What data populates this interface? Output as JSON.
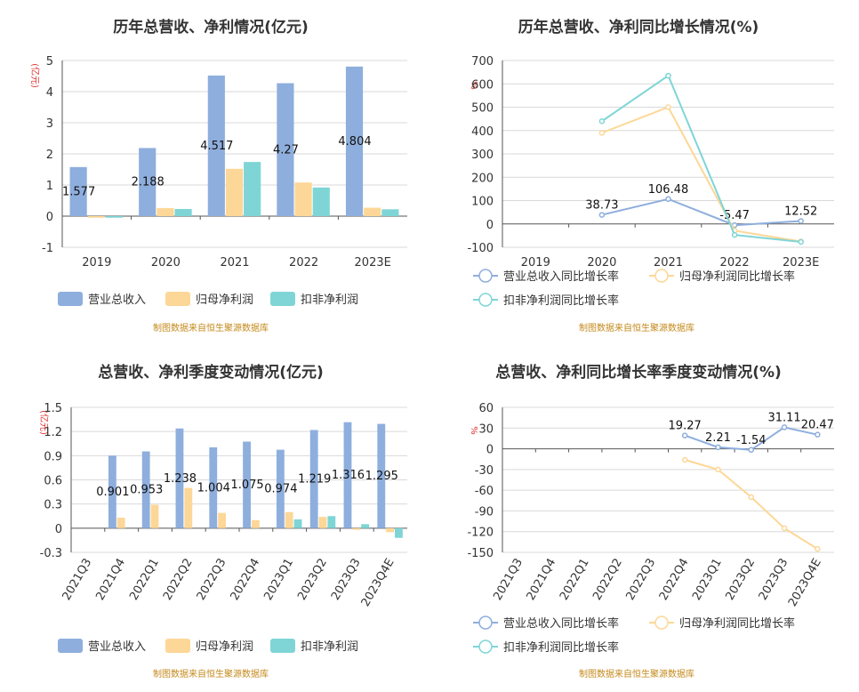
{
  "colors": {
    "revenue": "#8eaedd",
    "net_profit": "#fdd797",
    "deducted_profit": "#7fd5d6",
    "revenue_line": "#8eaedd",
    "net_line": "#fdd797",
    "deducted_line": "#7fd5d6"
  },
  "chart_data": [
    {
      "id": "annual-values",
      "type": "bar",
      "title": "历年总营收、净利情况(亿元)",
      "unit_label": "(亿元)",
      "categories": [
        "2019",
        "2020",
        "2021",
        "2022",
        "2023E"
      ],
      "ylim": [
        -1,
        5
      ],
      "yticks": [
        -1,
        0,
        1,
        2,
        3,
        4,
        5
      ],
      "grid": true,
      "legend_placement": "bottom",
      "series": [
        {
          "name": "营业总收入",
          "values": [
            1.577,
            2.188,
            4.517,
            4.27,
            4.804
          ],
          "labels": [
            "1.577",
            "2.188",
            "4.517",
            "4.27",
            "4.804"
          ]
        },
        {
          "name": "归母净利润",
          "values": [
            -0.05,
            0.26,
            1.52,
            1.08,
            0.27
          ]
        },
        {
          "name": "扣非净利润",
          "values": [
            -0.05,
            0.23,
            1.74,
            0.92,
            0.22
          ]
        }
      ],
      "source": "制图数据来自恒生聚源数据库"
    },
    {
      "id": "annual-growth",
      "type": "line",
      "title": "历年总营收、净利同比增长情况(%)",
      "unit_label": "%",
      "categories": [
        "2019",
        "2020",
        "2021",
        "2022",
        "2023E"
      ],
      "ylim": [
        -100,
        700
      ],
      "yticks": [
        -100,
        0,
        100,
        200,
        300,
        400,
        500,
        600,
        700
      ],
      "grid": true,
      "legend_placement": "bottom",
      "series": [
        {
          "name": "营业总收入同比增长率",
          "values": [
            null,
            38.73,
            106.48,
            -5.47,
            12.52
          ],
          "labels": [
            "",
            "38.73",
            "106.48",
            "-5.47",
            "12.52"
          ]
        },
        {
          "name": "归母净利润同比增长率",
          "values": [
            null,
            390,
            500,
            -29,
            -75
          ]
        },
        {
          "name": "扣非净利润同比增长率",
          "values": [
            null,
            440,
            635,
            -47,
            -77
          ]
        }
      ],
      "source": "制图数据来自恒生聚源数据库"
    },
    {
      "id": "quarterly-values",
      "type": "bar",
      "title": "总营收、净利季度变动情况(亿元)",
      "unit_label": "(亿元)",
      "categories": [
        "2021Q3",
        "2021Q4",
        "2022Q1",
        "2022Q2",
        "2022Q3",
        "2022Q4",
        "2023Q1",
        "2023Q2",
        "2023Q3",
        "2023Q4E"
      ],
      "ylim": [
        -0.3,
        1.5
      ],
      "yticks": [
        -0.3,
        0,
        0.3,
        0.6,
        0.9,
        1.2,
        1.5
      ],
      "grid": true,
      "legend_placement": "bottom",
      "series": [
        {
          "name": "营业总收入",
          "values": [
            null,
            0.901,
            0.953,
            1.238,
            1.004,
            1.075,
            0.974,
            1.219,
            1.316,
            1.295
          ],
          "labels": [
            "",
            "0.901",
            "0.953",
            "1.238",
            "1.004",
            "1.075",
            "0.974",
            "1.219",
            "1.316",
            "1.295"
          ]
        },
        {
          "name": "归母净利润",
          "values": [
            null,
            0.13,
            0.29,
            0.5,
            0.19,
            0.1,
            0.2,
            0.14,
            -0.02,
            -0.05
          ]
        },
        {
          "name": "扣非净利润",
          "values": [
            null,
            null,
            null,
            null,
            null,
            null,
            0.11,
            0.15,
            0.05,
            -0.12
          ]
        }
      ],
      "source": "制图数据来自恒生聚源数据库"
    },
    {
      "id": "quarterly-growth",
      "type": "line",
      "title": "总营收、净利同比增长率季度变动情况(%)",
      "unit_label": "%",
      "categories": [
        "2021Q3",
        "2021Q4",
        "2022Q1",
        "2022Q2",
        "2022Q3",
        "2022Q4",
        "2023Q1",
        "2023Q2",
        "2023Q3",
        "2023Q4E"
      ],
      "ylim": [
        -150,
        60
      ],
      "yticks": [
        -150,
        -120,
        -90,
        -60,
        -30,
        0,
        30,
        60
      ],
      "grid": true,
      "legend_placement": "bottom",
      "series": [
        {
          "name": "营业总收入同比增长率",
          "values": [
            null,
            null,
            null,
            null,
            null,
            19.27,
            2.21,
            -1.54,
            31.11,
            20.47
          ],
          "labels": [
            "",
            "",
            "",
            "",
            "",
            "19.27",
            "2.21",
            "-1.54",
            "31.11",
            "20.47"
          ]
        },
        {
          "name": "归母净利润同比增长率",
          "values": [
            null,
            null,
            null,
            null,
            null,
            -16,
            -30,
            -70,
            -115,
            -145
          ]
        },
        {
          "name": "扣非净利润同比增长率",
          "values": [
            null,
            null,
            null,
            null,
            null,
            null,
            null,
            null,
            null,
            null
          ]
        }
      ],
      "source": "制图数据来自恒生聚源数据库"
    }
  ]
}
